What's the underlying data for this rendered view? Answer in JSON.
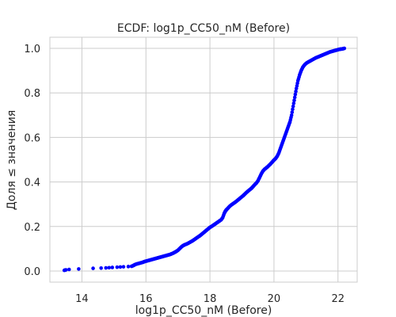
{
  "chart_data": {
    "type": "scatter",
    "title": "ECDF: log1p_CC50_nM (Before)",
    "xlabel": "log1p_CC50_nM (Before)",
    "ylabel": "Доля ≤ значения",
    "xlim": [
      13.0,
      22.6
    ],
    "ylim": [
      -0.05,
      1.05
    ],
    "x_ticks": [
      14,
      16,
      18,
      20,
      22
    ],
    "x_tick_labels": [
      "14",
      "16",
      "18",
      "20",
      "22"
    ],
    "y_ticks": [
      0.0,
      0.2,
      0.4,
      0.6,
      0.8,
      1.0
    ],
    "y_tick_labels": [
      "0.0",
      "0.2",
      "0.4",
      "0.6",
      "0.8",
      "1.0"
    ],
    "grid": true,
    "marker_color": "#0000ff",
    "points": {
      "x": [
        13.45,
        13.5,
        13.6,
        13.9,
        14.35,
        14.6,
        14.75,
        14.85,
        14.95,
        15.1,
        15.2,
        15.3,
        15.45,
        15.55,
        15.6,
        15.65,
        15.7,
        15.75,
        15.8,
        15.85,
        15.9,
        15.95,
        16.0,
        16.05,
        16.1,
        16.15,
        16.2,
        16.25,
        16.3,
        16.35,
        16.4,
        16.45,
        16.5,
        16.55,
        16.6,
        16.65,
        16.7,
        16.75,
        16.8,
        16.85,
        16.9,
        16.95,
        17.0,
        17.05,
        17.1,
        17.15,
        17.2,
        17.25,
        17.3,
        17.35,
        17.4,
        17.45,
        17.5,
        17.55,
        17.6,
        17.65,
        17.7,
        17.75,
        17.8,
        17.85,
        17.9,
        17.95,
        18.0,
        18.05,
        18.1,
        18.15,
        18.2,
        18.25,
        18.3,
        18.35,
        18.4,
        18.45,
        18.48,
        18.5,
        18.52,
        18.55,
        18.6,
        18.65,
        18.7,
        18.75,
        18.8,
        18.85,
        18.9,
        18.95,
        19.0,
        19.05,
        19.1,
        19.15,
        19.2,
        19.25,
        19.3,
        19.35,
        19.4,
        19.45,
        19.5,
        19.55,
        19.6,
        19.65,
        19.7,
        19.75,
        19.8,
        19.85,
        19.9,
        19.95,
        20.0,
        20.05,
        20.1,
        20.15,
        20.2,
        20.25,
        20.3,
        20.35,
        20.4,
        20.45,
        20.5,
        20.55,
        20.6,
        20.65,
        20.7,
        20.75,
        20.8,
        20.85,
        20.9,
        20.95,
        21.0,
        21.05,
        21.1,
        21.15,
        21.2,
        21.25,
        21.3,
        21.35,
        21.4,
        21.45,
        21.5,
        21.55,
        21.6,
        21.65,
        21.7,
        21.75,
        21.8,
        21.85,
        21.9,
        21.95,
        22.0,
        22.05,
        22.1,
        22.15,
        22.2
      ],
      "y": [
        0.003,
        0.005,
        0.007,
        0.009,
        0.012,
        0.013,
        0.014,
        0.015,
        0.016,
        0.017,
        0.018,
        0.019,
        0.02,
        0.021,
        0.024,
        0.028,
        0.031,
        0.033,
        0.035,
        0.037,
        0.039,
        0.042,
        0.044,
        0.046,
        0.048,
        0.05,
        0.052,
        0.054,
        0.056,
        0.058,
        0.06,
        0.062,
        0.064,
        0.066,
        0.068,
        0.07,
        0.072,
        0.074,
        0.077,
        0.08,
        0.084,
        0.088,
        0.093,
        0.1,
        0.107,
        0.113,
        0.117,
        0.12,
        0.123,
        0.127,
        0.131,
        0.135,
        0.14,
        0.145,
        0.15,
        0.155,
        0.16,
        0.166,
        0.172,
        0.178,
        0.184,
        0.19,
        0.196,
        0.2,
        0.205,
        0.21,
        0.215,
        0.22,
        0.225,
        0.23,
        0.24,
        0.26,
        0.268,
        0.272,
        0.276,
        0.28,
        0.288,
        0.295,
        0.3,
        0.305,
        0.31,
        0.316,
        0.322,
        0.328,
        0.334,
        0.34,
        0.347,
        0.354,
        0.36,
        0.366,
        0.372,
        0.38,
        0.388,
        0.395,
        0.405,
        0.42,
        0.435,
        0.448,
        0.456,
        0.462,
        0.468,
        0.475,
        0.482,
        0.49,
        0.498,
        0.505,
        0.515,
        0.53,
        0.55,
        0.57,
        0.59,
        0.61,
        0.63,
        0.65,
        0.67,
        0.7,
        0.74,
        0.78,
        0.82,
        0.855,
        0.88,
        0.9,
        0.915,
        0.925,
        0.932,
        0.937,
        0.941,
        0.945,
        0.949,
        0.953,
        0.957,
        0.96,
        0.963,
        0.966,
        0.969,
        0.972,
        0.975,
        0.978,
        0.981,
        0.984,
        0.986,
        0.988,
        0.99,
        0.992,
        0.994,
        0.996,
        0.997,
        0.998,
        1.0
      ]
    }
  }
}
